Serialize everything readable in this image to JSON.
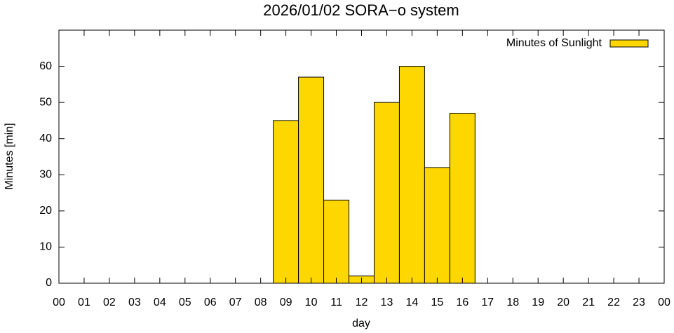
{
  "chart_data": {
    "type": "bar",
    "title": "2026/01/02 SORA−o system",
    "x_label": "day",
    "y_label": "Minutes [min]",
    "categories": [
      "00",
      "01",
      "02",
      "03",
      "04",
      "05",
      "06",
      "07",
      "08",
      "09",
      "10",
      "11",
      "12",
      "13",
      "14",
      "15",
      "16",
      "17",
      "18",
      "19",
      "20",
      "21",
      "22",
      "23",
      "00"
    ],
    "series": [
      {
        "name": "Minutes of Sunlight",
        "color": "#ffd700",
        "values": [
          0,
          0,
          0,
          0,
          0,
          0,
          0,
          0,
          0,
          45,
          57,
          23,
          2,
          50,
          60,
          32,
          47,
          0,
          0,
          0,
          0,
          0,
          0,
          0,
          null
        ]
      }
    ],
    "ylim": [
      0,
      70
    ],
    "yticks": [
      0,
      10,
      20,
      30,
      40,
      50,
      60
    ],
    "legend": "top-right",
    "grid": false
  }
}
